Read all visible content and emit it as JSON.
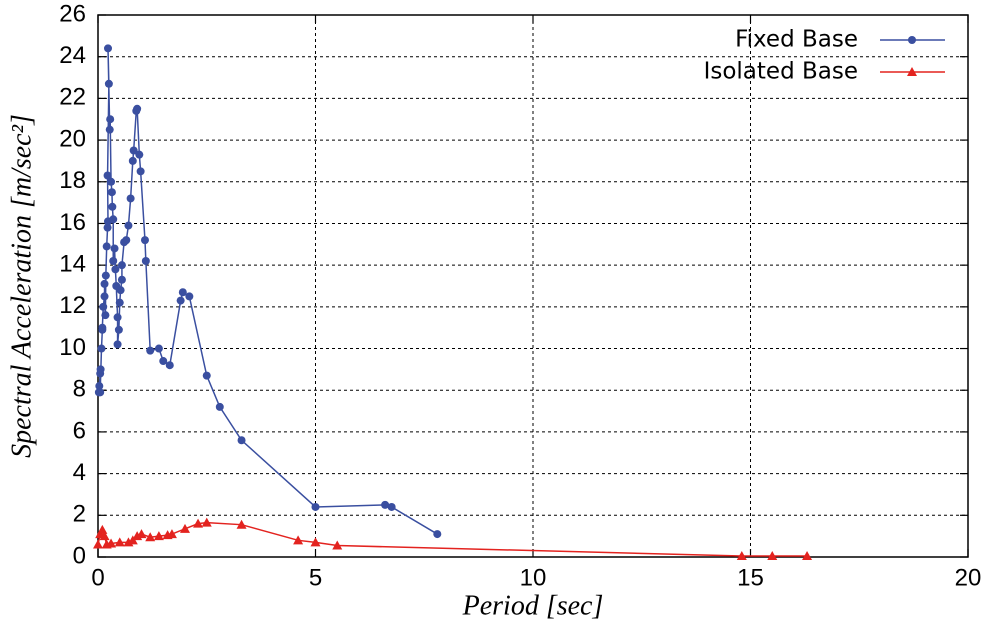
{
  "chart_data": {
    "type": "line",
    "x_label": "Period [sec]",
    "y_label": "Spectral Acceleration [m/sec²]",
    "xlim": [
      0,
      20
    ],
    "ylim": [
      0,
      26
    ],
    "xticks": [
      0,
      5,
      10,
      15,
      20
    ],
    "yticks": [
      0,
      2,
      4,
      6,
      8,
      10,
      12,
      14,
      16,
      18,
      20,
      22,
      24,
      26
    ],
    "grid": true,
    "legend": "upper right",
    "series": [
      {
        "name": "Fixed Base",
        "color": "#3a4fa0",
        "marker": "circle",
        "x": [
          0.02,
          0.03,
          0.05,
          0.06,
          0.05,
          0.08,
          0.1,
          0.1,
          0.12,
          0.15,
          0.15,
          0.17,
          0.18,
          0.2,
          0.22,
          0.23,
          0.22,
          0.25,
          0.23,
          0.27,
          0.28,
          0.3,
          0.32,
          0.33,
          0.35,
          0.35,
          0.38,
          0.4,
          0.42,
          0.45,
          0.45,
          0.48,
          0.5,
          0.52,
          0.55,
          0.55,
          0.6,
          0.65,
          0.7,
          0.75,
          0.8,
          0.82,
          0.88,
          0.9,
          0.95,
          0.98,
          1.08,
          1.1,
          1.2,
          1.4,
          1.5,
          1.65,
          1.9,
          1.95,
          2.1,
          2.5,
          2.8,
          3.3,
          5.0,
          6.6,
          6.75,
          7.8
        ],
        "values": [
          7.9,
          8.2,
          8.8,
          9.0,
          7.9,
          10.0,
          10.9,
          11.0,
          12.0,
          12.5,
          13.1,
          11.6,
          13.5,
          14.9,
          15.8,
          16.1,
          18.3,
          22.7,
          24.4,
          20.5,
          21.0,
          18.0,
          17.5,
          16.8,
          16.2,
          14.2,
          14.8,
          13.8,
          13.0,
          11.5,
          10.2,
          10.9,
          12.2,
          12.8,
          13.3,
          14.0,
          15.1,
          15.2,
          15.9,
          17.2,
          19.0,
          19.5,
          21.4,
          21.5,
          19.3,
          18.5,
          15.2,
          14.2,
          9.9,
          10.0,
          9.4,
          9.2,
          12.3,
          12.7,
          12.5,
          8.7,
          7.2,
          5.6,
          2.4,
          2.5,
          2.4,
          1.1
        ]
      },
      {
        "name": "Isolated Base",
        "color": "#e3231f",
        "marker": "triangle",
        "x": [
          0,
          0.05,
          0.1,
          0.15,
          0.2,
          0.3,
          0.5,
          0.7,
          0.8,
          0.9,
          1.0,
          1.2,
          1.4,
          1.6,
          1.7,
          2.0,
          2.3,
          2.5,
          3.3,
          4.6,
          5.0,
          5.5,
          14.8,
          15.5,
          16.3
        ],
        "values": [
          0.6,
          1.1,
          1.3,
          1.0,
          0.6,
          0.65,
          0.7,
          0.7,
          0.8,
          1.0,
          1.1,
          0.95,
          1.0,
          1.05,
          1.1,
          1.35,
          1.6,
          1.65,
          1.55,
          0.8,
          0.7,
          0.55,
          0.05,
          0.05,
          0.05
        ]
      }
    ]
  }
}
